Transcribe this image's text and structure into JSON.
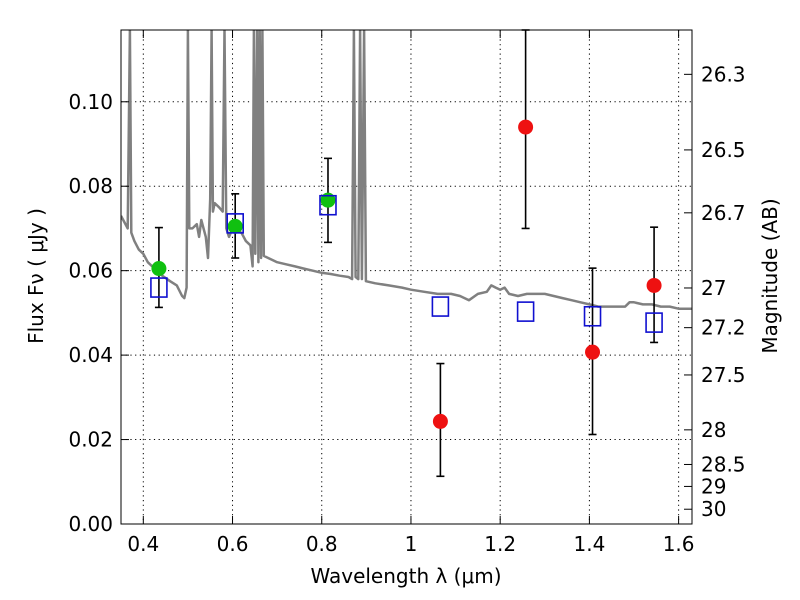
{
  "chart_data": {
    "type": "scatter",
    "xlabel": "Wavelength  λ (μm)",
    "ylabel": "Flux  Fν  ( μJy )",
    "ylabel_right": "Magnitude (AB)",
    "xlim": [
      0.35,
      1.63
    ],
    "ylim": [
      0.0,
      0.117
    ],
    "grid": true,
    "x_ticks": [
      0.4,
      0.6,
      0.8,
      1.0,
      1.2,
      1.4,
      1.6
    ],
    "x_tick_labels": [
      "0.4",
      "0.6",
      "0.8",
      "1",
      "1.2",
      "1.4",
      "1.6"
    ],
    "y_ticks": [
      0.0,
      0.02,
      0.04,
      0.06,
      0.08,
      0.1
    ],
    "y_tick_labels": [
      "0.00",
      "0.02",
      "0.04",
      "0.06",
      "0.08",
      "0.10"
    ],
    "right_axis_ticks": [
      {
        "label": "26.3",
        "flux": 0.1065
      },
      {
        "label": "26.5",
        "flux": 0.0886
      },
      {
        "label": "26.7",
        "flux": 0.0737
      },
      {
        "label": "27",
        "flux": 0.0559
      },
      {
        "label": "27.2",
        "flux": 0.0465
      },
      {
        "label": "27.5",
        "flux": 0.0353
      },
      {
        "label": "28",
        "flux": 0.0223
      },
      {
        "label": "28.5",
        "flux": 0.0141
      },
      {
        "label": "29",
        "flux": 0.0089
      },
      {
        "label": "30",
        "flux": 0.0035
      }
    ],
    "series": [
      {
        "marker": "circle",
        "color": "#10c010",
        "points": [
          {
            "x": 0.435,
            "y": 0.0605,
            "yerr_low": 0.0513,
            "yerr_high": 0.0702
          },
          {
            "x": 0.606,
            "y": 0.0705,
            "yerr_low": 0.063,
            "yerr_high": 0.0782
          },
          {
            "x": 0.814,
            "y": 0.0767,
            "yerr_low": 0.0667,
            "yerr_high": 0.0866
          }
        ]
      },
      {
        "marker": "circle",
        "color": "#ee1111",
        "points": [
          {
            "x": 1.066,
            "y": 0.0243,
            "yerr_low": 0.0113,
            "yerr_high": 0.038
          },
          {
            "x": 1.257,
            "y": 0.094,
            "yerr_low": 0.07,
            "yerr_high": 0.117
          },
          {
            "x": 1.407,
            "y": 0.0407,
            "yerr_low": 0.0212,
            "yerr_high": 0.0606
          },
          {
            "x": 1.545,
            "y": 0.0565,
            "yerr_low": 0.043,
            "yerr_high": 0.0703
          }
        ]
      },
      {
        "marker": "square-open",
        "color": "#1010d0",
        "points": [
          {
            "x": 0.435,
            "y": 0.056
          },
          {
            "x": 0.606,
            "y": 0.0712
          },
          {
            "x": 0.814,
            "y": 0.0755
          },
          {
            "x": 1.066,
            "y": 0.0515
          },
          {
            "x": 1.257,
            "y": 0.0503
          },
          {
            "x": 1.407,
            "y": 0.0492
          },
          {
            "x": 1.545,
            "y": 0.0477
          }
        ]
      }
    ],
    "model_spectrum": {
      "color": "#808080",
      "points": [
        [
          0.35,
          0.073
        ],
        [
          0.365,
          0.07
        ],
        [
          0.37,
          0.117
        ],
        [
          0.373,
          0.069
        ],
        [
          0.38,
          0.067
        ],
        [
          0.39,
          0.065
        ],
        [
          0.4,
          0.064
        ],
        [
          0.41,
          0.062
        ],
        [
          0.42,
          0.061
        ],
        [
          0.44,
          0.059
        ],
        [
          0.46,
          0.0575
        ],
        [
          0.475,
          0.0565
        ],
        [
          0.487,
          0.054
        ],
        [
          0.492,
          0.0535
        ],
        [
          0.497,
          0.056
        ],
        [
          0.5,
          0.117
        ],
        [
          0.503,
          0.07
        ],
        [
          0.51,
          0.07
        ],
        [
          0.52,
          0.071
        ],
        [
          0.525,
          0.068
        ],
        [
          0.53,
          0.072
        ],
        [
          0.54,
          0.068
        ],
        [
          0.545,
          0.063
        ],
        [
          0.55,
          0.077
        ],
        [
          0.553,
          0.117
        ],
        [
          0.556,
          0.074
        ],
        [
          0.56,
          0.076
        ],
        [
          0.57,
          0.075
        ],
        [
          0.578,
          0.074
        ],
        [
          0.582,
          0.117
        ],
        [
          0.586,
          0.07
        ],
        [
          0.592,
          0.068
        ],
        [
          0.6,
          0.07
        ],
        [
          0.62,
          0.069
        ],
        [
          0.63,
          0.067
        ],
        [
          0.64,
          0.066
        ],
        [
          0.645,
          0.061
        ],
        [
          0.648,
          0.117
        ],
        [
          0.651,
          0.064
        ],
        [
          0.655,
          0.117
        ],
        [
          0.658,
          0.062
        ],
        [
          0.661,
          0.117
        ],
        [
          0.664,
          0.063
        ],
        [
          0.667,
          0.117
        ],
        [
          0.67,
          0.0635
        ],
        [
          0.68,
          0.063
        ],
        [
          0.69,
          0.0625
        ],
        [
          0.7,
          0.062
        ],
        [
          0.72,
          0.0615
        ],
        [
          0.74,
          0.061
        ],
        [
          0.76,
          0.0605
        ],
        [
          0.78,
          0.06
        ],
        [
          0.8,
          0.0595
        ],
        [
          0.82,
          0.0592
        ],
        [
          0.84,
          0.0588
        ],
        [
          0.86,
          0.0585
        ],
        [
          0.868,
          0.058
        ],
        [
          0.872,
          0.117
        ],
        [
          0.876,
          0.0585
        ],
        [
          0.882,
          0.058
        ],
        [
          0.886,
          0.117
        ],
        [
          0.89,
          0.058
        ],
        [
          0.895,
          0.117
        ],
        [
          0.899,
          0.0575
        ],
        [
          0.92,
          0.057
        ],
        [
          0.95,
          0.0565
        ],
        [
          0.98,
          0.056
        ],
        [
          1.0,
          0.0555
        ],
        [
          1.03,
          0.055
        ],
        [
          1.06,
          0.0545
        ],
        [
          1.09,
          0.0545
        ],
        [
          1.11,
          0.054
        ],
        [
          1.13,
          0.053
        ],
        [
          1.15,
          0.0545
        ],
        [
          1.17,
          0.055
        ],
        [
          1.18,
          0.0565
        ],
        [
          1.19,
          0.056
        ],
        [
          1.2,
          0.0555
        ],
        [
          1.21,
          0.056
        ],
        [
          1.22,
          0.0545
        ],
        [
          1.24,
          0.054
        ],
        [
          1.26,
          0.0545
        ],
        [
          1.28,
          0.0545
        ],
        [
          1.3,
          0.0545
        ],
        [
          1.32,
          0.054
        ],
        [
          1.34,
          0.0535
        ],
        [
          1.36,
          0.053
        ],
        [
          1.38,
          0.0525
        ],
        [
          1.4,
          0.052
        ],
        [
          1.42,
          0.0515
        ],
        [
          1.44,
          0.0515
        ],
        [
          1.46,
          0.0515
        ],
        [
          1.48,
          0.0515
        ],
        [
          1.49,
          0.0525
        ],
        [
          1.5,
          0.0525
        ],
        [
          1.52,
          0.052
        ],
        [
          1.54,
          0.052
        ],
        [
          1.56,
          0.0515
        ],
        [
          1.58,
          0.0515
        ],
        [
          1.6,
          0.051
        ],
        [
          1.63,
          0.051
        ]
      ]
    }
  }
}
